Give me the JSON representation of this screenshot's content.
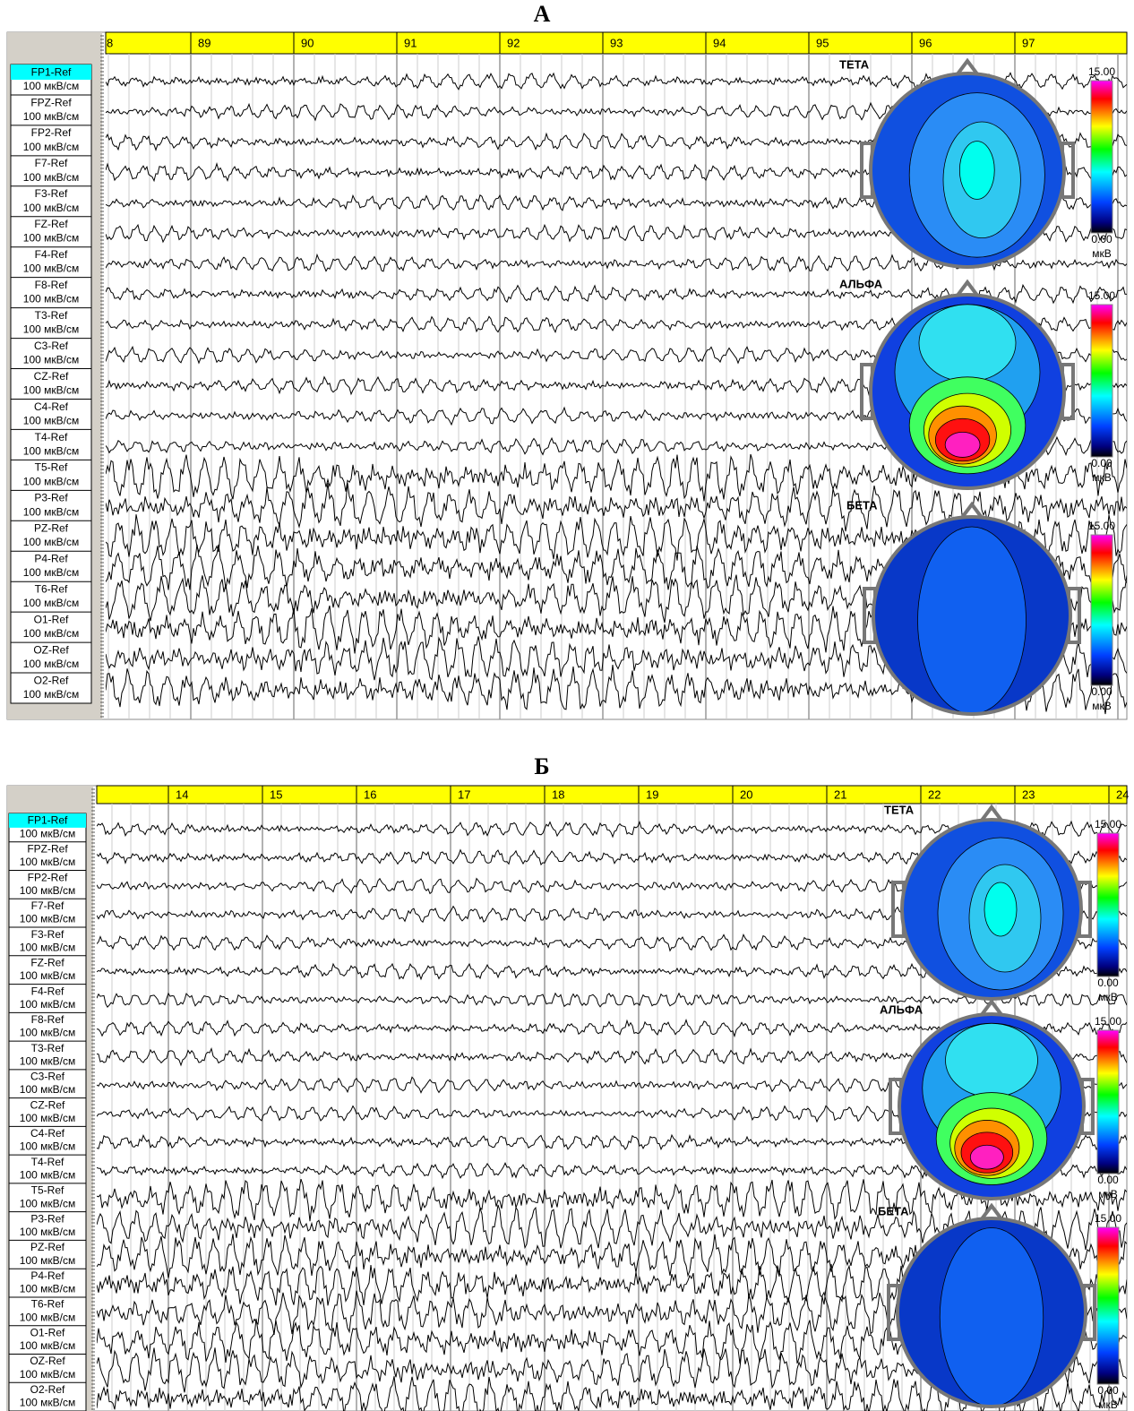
{
  "panels": [
    {
      "title": "А",
      "seconds": [
        "8",
        "89",
        "90",
        "91",
        "92",
        "93",
        "94",
        "95",
        "96",
        "97"
      ],
      "maps": [
        {
          "label": "ТЕТА",
          "max": "15.00",
          "min": "0.00",
          "unit": "мкВ"
        },
        {
          "label": "АЛЬФА",
          "max": "15.00",
          "min": "0.00",
          "unit": "мкВ"
        },
        {
          "label": "БЕТА",
          "max": "15.00",
          "min": "0.00",
          "unit": "мкВ"
        }
      ]
    },
    {
      "title": "Б",
      "seconds": [
        "14",
        "15",
        "16",
        "17",
        "18",
        "19",
        "20",
        "21",
        "22",
        "23",
        "24"
      ],
      "maps": [
        {
          "label": "ТЕТА",
          "max": "15.00",
          "min": "0.00",
          "unit": "мкВ"
        },
        {
          "label": "АЛЬФА",
          "max": "15.00",
          "min": "0.00",
          "unit": "мкВ"
        },
        {
          "label": "БЕТА",
          "max": "15.00",
          "min": "0.00",
          "unit": "мкВ"
        }
      ]
    }
  ],
  "channels": [
    "FP1-Ref",
    "FPZ-Ref",
    "FP2-Ref",
    "F7-Ref",
    "F3-Ref",
    "FZ-Ref",
    "F4-Ref",
    "F8-Ref",
    "T3-Ref",
    "C3-Ref",
    "CZ-Ref",
    "C4-Ref",
    "T4-Ref",
    "T5-Ref",
    "P3-Ref",
    "PZ-Ref",
    "P4-Ref",
    "T6-Ref",
    "O1-Ref",
    "OZ-Ref",
    "O2-Ref"
  ],
  "channel_unit": "100 мкВ/см"
}
